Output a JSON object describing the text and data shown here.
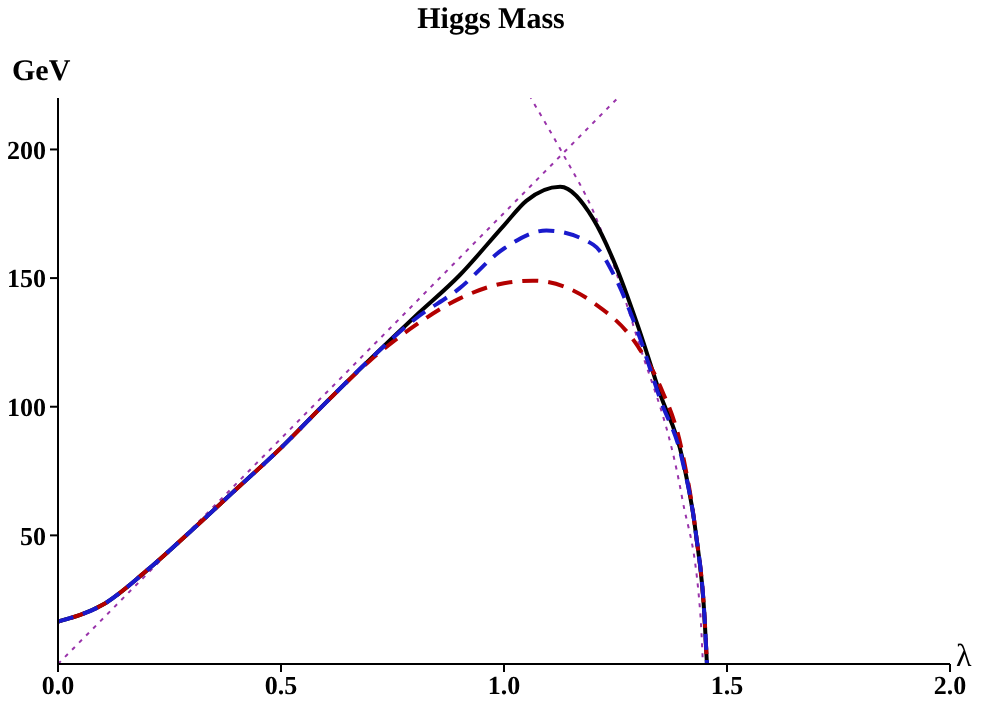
{
  "chart_data": {
    "type": "line",
    "title": "Higgs Mass",
    "xlabel": "λ",
    "ylabel": "GeV",
    "xlim": [
      0,
      2.0
    ],
    "ylim": [
      0,
      220
    ],
    "xticks": [
      {
        "value": 0,
        "label": "0.0"
      },
      {
        "value": 0.5,
        "label": "0.5"
      },
      {
        "value": 1,
        "label": "1.0"
      },
      {
        "value": 1.5,
        "label": "1.5"
      },
      {
        "value": 2,
        "label": "2.0"
      }
    ],
    "yticks": [
      50,
      100,
      150,
      200
    ],
    "grid": false,
    "marker": "none",
    "series": [
      {
        "color": "#9933aa",
        "line_style": "dotted",
        "x": [
          0,
          1.255
        ],
        "values": [
          0,
          220
        ]
      },
      {
        "color": "#9933aa",
        "line_style": "dotted",
        "x": [
          1.06,
          1.133,
          1.2,
          1.3,
          1.4,
          1.44,
          1.446
        ],
        "values": [
          220,
          198,
          176,
          126,
          64,
          20,
          0
        ]
      },
      {
        "color": "#000000",
        "line_style": "solid",
        "x": [
          0,
          0.1,
          0.2,
          0.3,
          0.4,
          0.5,
          0.6,
          0.7,
          0.8,
          0.9,
          1.0,
          1.05,
          1.126,
          1.2,
          1.25,
          1.3,
          1.35,
          1.4,
          1.43,
          1.45,
          1.455
        ],
        "values": [
          16.5,
          23,
          36.5,
          52,
          68,
          84,
          101.5,
          118.5,
          135,
          151,
          170.5,
          180,
          185.5,
          173,
          155,
          131.5,
          105,
          80,
          51,
          17,
          0
        ]
      },
      {
        "color": "#b30000",
        "line_style": "dashed",
        "x": [
          0,
          0.1,
          0.2,
          0.3,
          0.4,
          0.5,
          0.6,
          0.7,
          0.8,
          0.9,
          1.0,
          1.065,
          1.2,
          1.3,
          1.35,
          1.4,
          1.43,
          1.45,
          1.455
        ],
        "values": [
          16.5,
          23,
          36.5,
          52,
          68,
          84,
          101.5,
          118,
          131.5,
          142,
          148,
          149,
          140.5,
          123.5,
          108,
          82,
          51,
          17,
          0
        ]
      },
      {
        "color": "#1a1acc",
        "line_style": "dashed",
        "x": [
          0,
          0.1,
          0.2,
          0.3,
          0.4,
          0.5,
          0.6,
          0.7,
          0.8,
          0.9,
          1.0,
          1.095,
          1.2,
          1.25,
          1.3,
          1.35,
          1.4,
          1.43,
          1.45,
          1.455
        ],
        "values": [
          16.5,
          23,
          36.5,
          52,
          68,
          84,
          101.5,
          118.5,
          134,
          146,
          161.5,
          168.5,
          163,
          150,
          129,
          103,
          79,
          51,
          17,
          0
        ]
      }
    ]
  }
}
